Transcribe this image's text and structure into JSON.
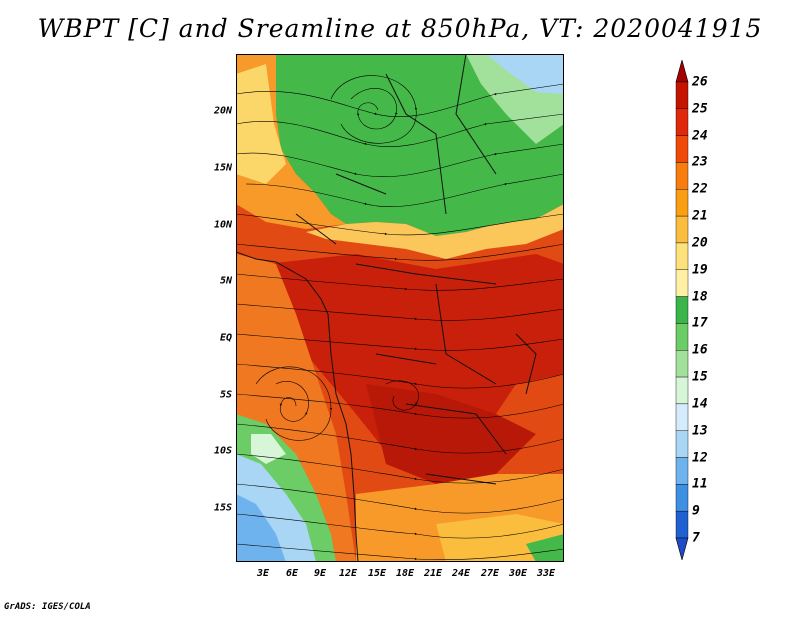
{
  "title": "WBPT [C] and Sreamline at 850hPa, VT: 2020041915",
  "y_ticks": [
    "20N",
    "15N",
    "10N",
    "5N",
    "EQ",
    "5S",
    "10S",
    "15S"
  ],
  "x_ticks": [
    "3E",
    "6E",
    "9E",
    "12E",
    "15E",
    "18E",
    "21E",
    "24E",
    "27E",
    "30E",
    "33E"
  ],
  "colorbar": {
    "levels": [
      "26",
      "25",
      "24",
      "23",
      "22",
      "21",
      "20",
      "19",
      "18",
      "17",
      "16",
      "15",
      "14",
      "13",
      "12",
      "11",
      "9",
      "7"
    ],
    "colors": [
      "#a50000",
      "#c41400",
      "#e0280a",
      "#f04a0a",
      "#f77d0f",
      "#fa9e14",
      "#fbbd3e",
      "#fde27c",
      "#fff0a6",
      "#39b54a",
      "#6ccc65",
      "#a2e19b",
      "#d7f5d7",
      "#d4ecfb",
      "#a9d6f5",
      "#6fb3ee",
      "#3f8fe3",
      "#2060d0",
      "#1e4cc8"
    ]
  },
  "footer": "GrADS: IGES/COLA"
}
